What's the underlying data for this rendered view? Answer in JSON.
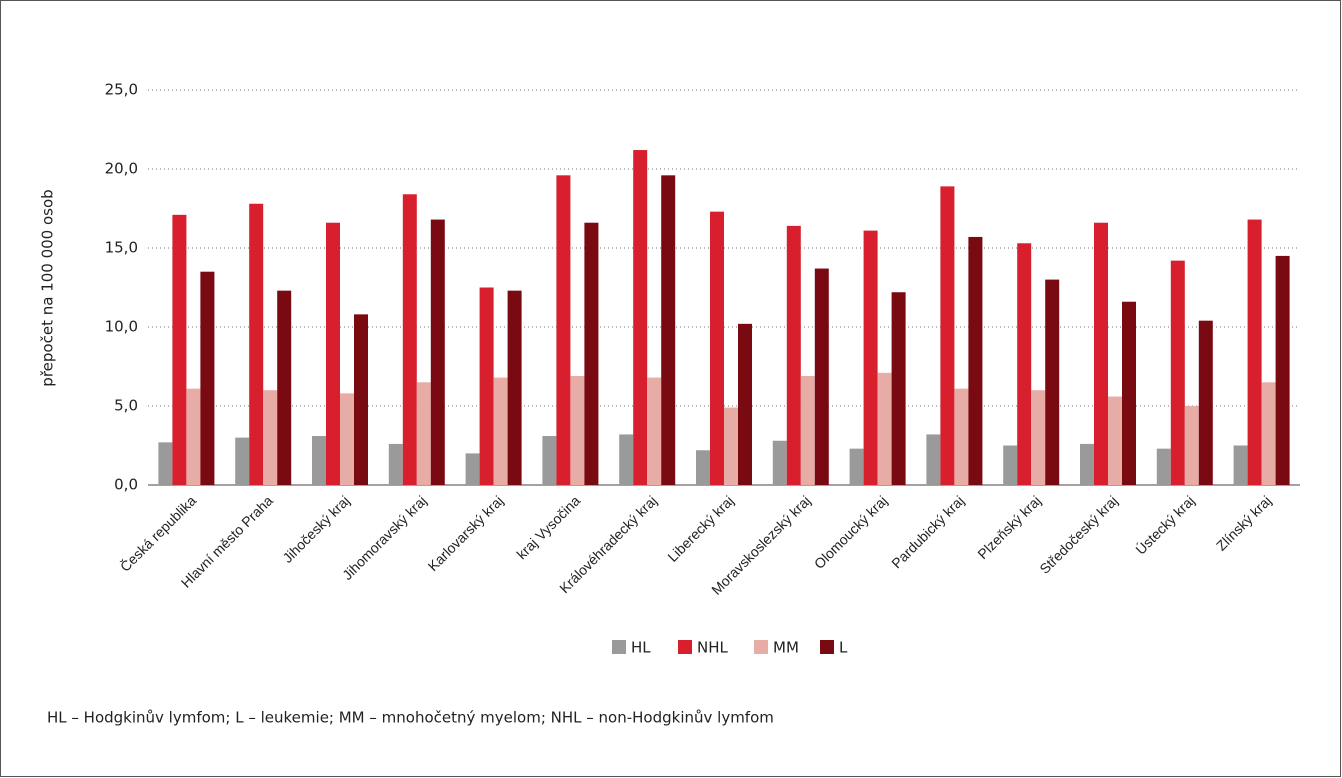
{
  "chart_data": {
    "type": "bar",
    "y_label": "přepočet na 100 000 osob",
    "footnote": "HL – Hodgkinův lymfom; L – leukemie; MM – mnohočetný myelom; NHL – non-Hodgkinův lymfom",
    "categories": [
      "Česká republika",
      "Hlavní město Praha",
      "Jihočeský kraj",
      "Jihomoravský kraj",
      "Karlovarský kraj",
      "kraj Vysočina",
      "Královéhradecký kraj",
      "Liberecký kraj",
      "Moravskoslezský kraj",
      "Olomoucký kraj",
      "Pardubický kraj",
      "Plzeňský kraj",
      "Středočeský kraj",
      "Ústecký kraj",
      "Zlínský kraj"
    ],
    "series": [
      {
        "name": "HL",
        "color": "#9a9a9a",
        "values": [
          2.7,
          3.0,
          3.1,
          2.6,
          2.0,
          3.1,
          3.2,
          2.2,
          2.8,
          2.3,
          3.2,
          2.5,
          2.6,
          2.3,
          2.5
        ]
      },
      {
        "name": "NHL",
        "color": "#d71f2e",
        "values": [
          17.1,
          17.8,
          16.6,
          18.4,
          12.5,
          19.6,
          21.2,
          17.3,
          16.4,
          16.1,
          18.9,
          15.3,
          16.6,
          14.2,
          16.8
        ]
      },
      {
        "name": "MM",
        "color": "#e8aca7",
        "values": [
          6.1,
          6.0,
          5.8,
          6.5,
          6.8,
          6.9,
          6.8,
          4.9,
          6.9,
          7.1,
          6.1,
          6.0,
          5.6,
          5.0,
          6.5
        ]
      },
      {
        "name": "L",
        "color": "#7a0a12",
        "values": [
          13.5,
          12.3,
          10.8,
          16.8,
          12.3,
          16.6,
          19.6,
          10.2,
          13.7,
          12.2,
          15.7,
          13.0,
          11.6,
          10.4,
          14.5
        ]
      }
    ],
    "ylim": [
      0,
      25
    ],
    "yticks": [
      {
        "value": 0,
        "label": "0,0"
      },
      {
        "value": 5,
        "label": "5,0"
      },
      {
        "value": 10,
        "label": "10,0"
      },
      {
        "value": 15,
        "label": "15,0"
      },
      {
        "value": 20,
        "label": "20,0"
      },
      {
        "value": 25,
        "label": "25,0"
      }
    ],
    "grid": true,
    "legend": "bottom"
  }
}
